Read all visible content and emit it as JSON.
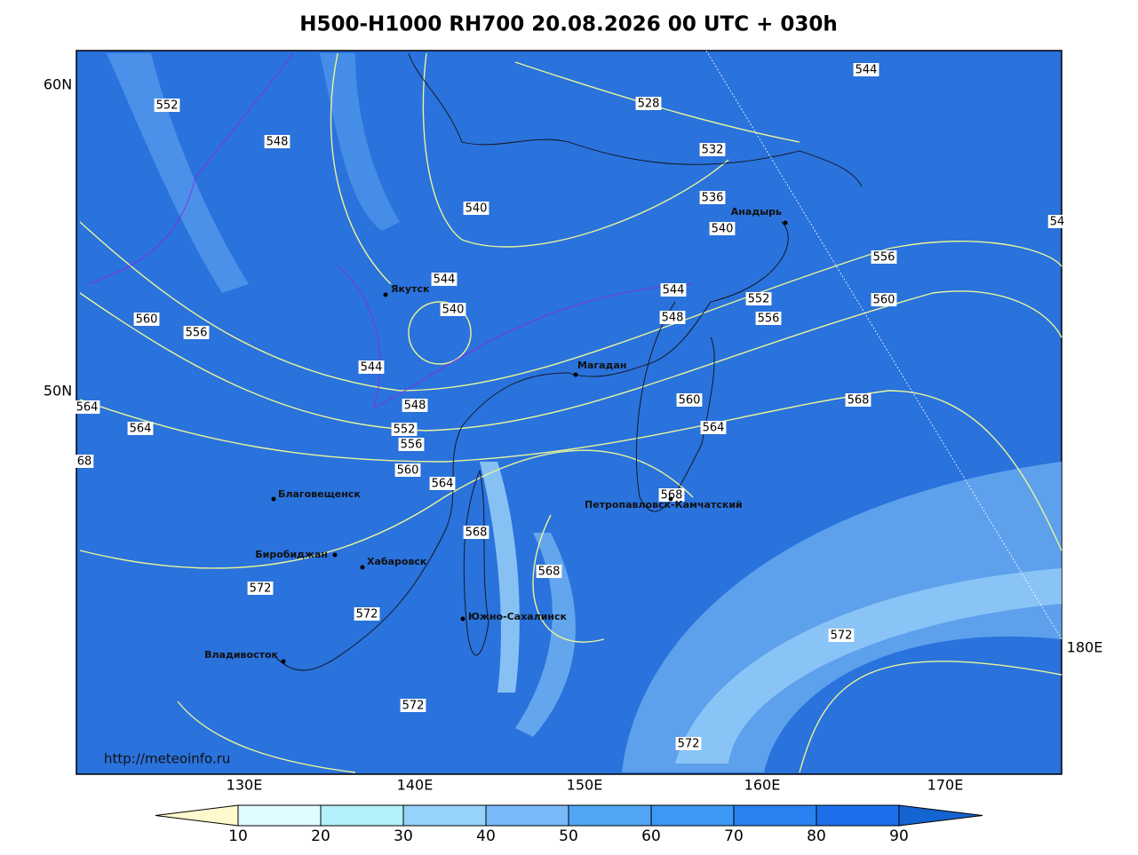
{
  "title": "H500-H1000 RH700 20.08.2026 00 UTC + 030h",
  "lat_labels": [
    "60N",
    "50N"
  ],
  "lon_labels": [
    "130E",
    "140E",
    "150E",
    "160E",
    "170E",
    "180E"
  ],
  "cities": [
    "Якутск",
    "Магадан",
    "Анадырь",
    "Благовещенск",
    "Биробиджан",
    "Хабаровск",
    "Южно-Сахалинск",
    "Петропавловск-Камчатский",
    "Владивосток"
  ],
  "contour_labels": [
    "552",
    "548",
    "528",
    "544",
    "532",
    "536",
    "540",
    "540",
    "556",
    "544",
    "544",
    "552",
    "560",
    "540",
    "548",
    "556",
    "560",
    "556",
    "544",
    "560",
    "568",
    "548",
    "564",
    "552",
    "564",
    "564",
    "556",
    "68",
    "560",
    "564",
    "568",
    "568",
    "568",
    "572",
    "572",
    "572",
    "572",
    "572",
    "54"
  ],
  "credit": "http://meteoinfo.ru",
  "colorbar": {
    "ticks": [
      10,
      20,
      30,
      40,
      50,
      60,
      70,
      80,
      90
    ],
    "colors": [
      "#fffacd",
      "#e0fcff",
      "#b4f0fa",
      "#96d2fa",
      "#78b9fa",
      "#50a5f5",
      "#3c97f5",
      "#2882f0",
      "#1e6eeb",
      "#1464d2"
    ]
  }
}
